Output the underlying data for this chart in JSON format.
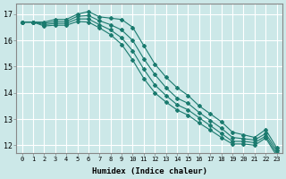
{
  "xlabel": "Humidex (Indice chaleur)",
  "background_color": "#cce8e8",
  "grid_color": "#ffffff",
  "line_color": "#1a7a6e",
  "xlim": [
    -0.5,
    23.5
  ],
  "ylim": [
    11.7,
    17.4
  ],
  "xtick_labels": [
    "0",
    "1",
    "2",
    "3",
    "4",
    "5",
    "6",
    "7",
    "8",
    "9",
    "10",
    "11",
    "12",
    "13",
    "14",
    "15",
    "16",
    "17",
    "18",
    "19",
    "20",
    "21",
    "22",
    "23"
  ],
  "ytick_labels": [
    "12",
    "13",
    "14",
    "15",
    "16",
    "17"
  ],
  "series": [
    [
      16.7,
      16.7,
      16.7,
      16.8,
      16.8,
      17.0,
      17.1,
      16.9,
      16.85,
      16.8,
      16.5,
      15.8,
      15.1,
      14.6,
      14.2,
      13.9,
      13.5,
      13.2,
      12.9,
      12.5,
      12.4,
      12.3,
      12.6,
      11.9
    ],
    [
      16.7,
      16.7,
      16.65,
      16.72,
      16.72,
      16.92,
      16.95,
      16.75,
      16.6,
      16.4,
      16.0,
      15.3,
      14.7,
      14.2,
      13.8,
      13.6,
      13.25,
      12.95,
      12.65,
      12.3,
      12.25,
      12.2,
      12.45,
      11.8
    ],
    [
      16.7,
      16.7,
      16.6,
      16.65,
      16.65,
      16.82,
      16.82,
      16.6,
      16.4,
      16.1,
      15.6,
      14.9,
      14.3,
      13.9,
      13.55,
      13.35,
      13.05,
      12.75,
      12.45,
      12.15,
      12.15,
      12.1,
      12.35,
      11.7
    ],
    [
      16.7,
      16.7,
      16.55,
      16.58,
      16.58,
      16.72,
      16.7,
      16.48,
      16.22,
      15.85,
      15.25,
      14.55,
      14.0,
      13.65,
      13.35,
      13.15,
      12.85,
      12.58,
      12.3,
      12.05,
      12.05,
      12.0,
      12.28,
      11.6
    ]
  ]
}
